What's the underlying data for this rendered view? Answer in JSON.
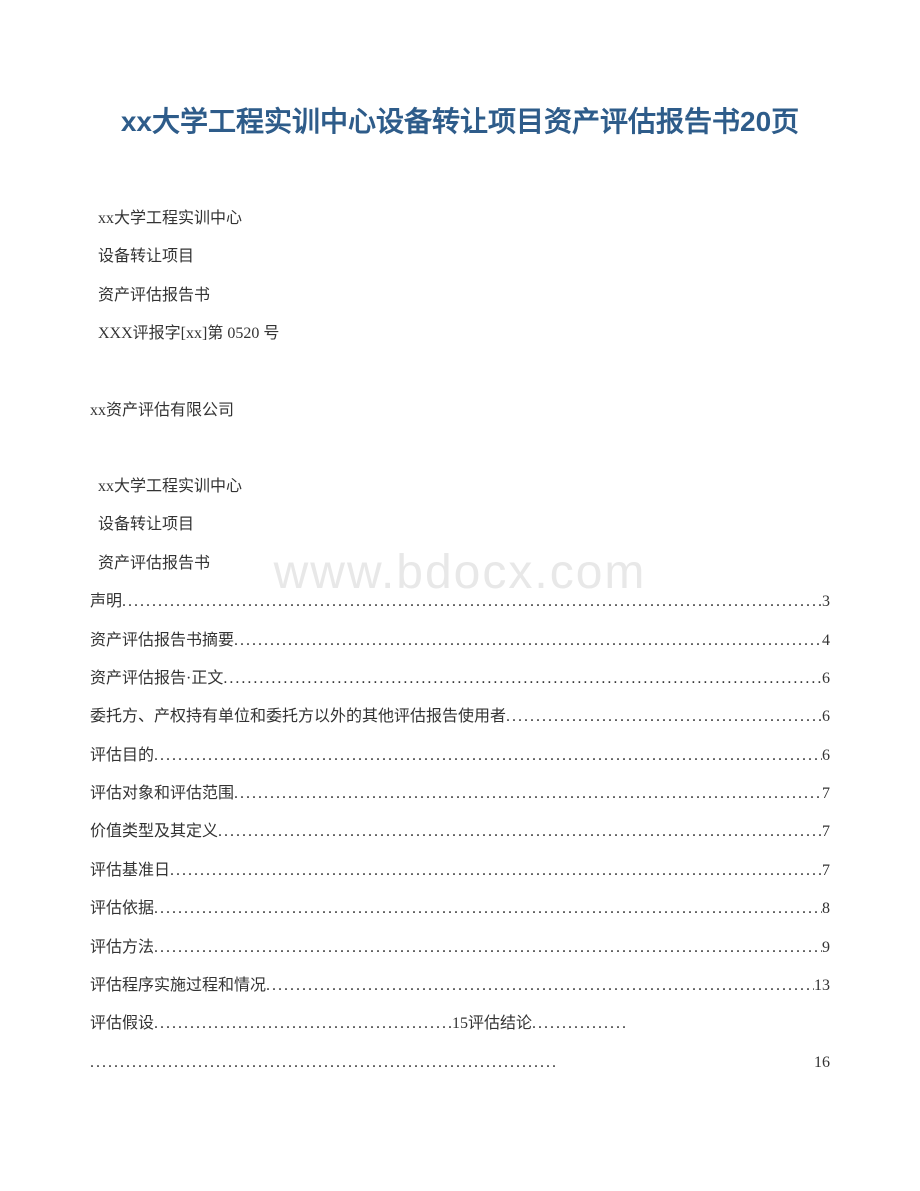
{
  "title": "xx大学工程实训中心设备转让项目资产评估报告书20页",
  "watermark": "www.bdocx.com",
  "header_block": {
    "line1": "xx大学工程实训中心",
    "line2": "设备转让项目",
    "line3": "资产评估报告书",
    "line4": "XXX评报字[xx]第 0520 号"
  },
  "company": "xx资产评估有限公司",
  "toc_header": {
    "line1": "xx大学工程实训中心",
    "line2": "设备转让项目",
    "line3": "资产评估报告书"
  },
  "toc": [
    {
      "label": "声明",
      "page": "3"
    },
    {
      "label": "资产评估报告书摘要",
      "page": "4"
    },
    {
      "label": "资产评估报告·正文",
      "page": "6"
    },
    {
      "label": "委托方、产权持有单位和委托方以外的其他评估报告使用者",
      "page": "6"
    },
    {
      "label": "评估目的",
      "page": "6"
    },
    {
      "label": "评估对象和评估范围",
      "page": "7"
    },
    {
      "label": " 价值类型及其定义",
      "page": "7"
    },
    {
      "label": "评估基准日",
      "page": "7"
    },
    {
      "label": "评估依据",
      "page": "8"
    },
    {
      "label": "评估方法",
      "page": "9"
    },
    {
      "label": "评估程序实施过程和情况",
      "page": "13"
    }
  ],
  "toc_last": {
    "label1": "评估假设",
    "page1": "15",
    "label2": "评估结论",
    "page2": "16"
  },
  "colors": {
    "title_color": "#2e5c8a",
    "text_color": "#333333",
    "watermark_color": "#e8e8e8",
    "background": "#ffffff"
  }
}
